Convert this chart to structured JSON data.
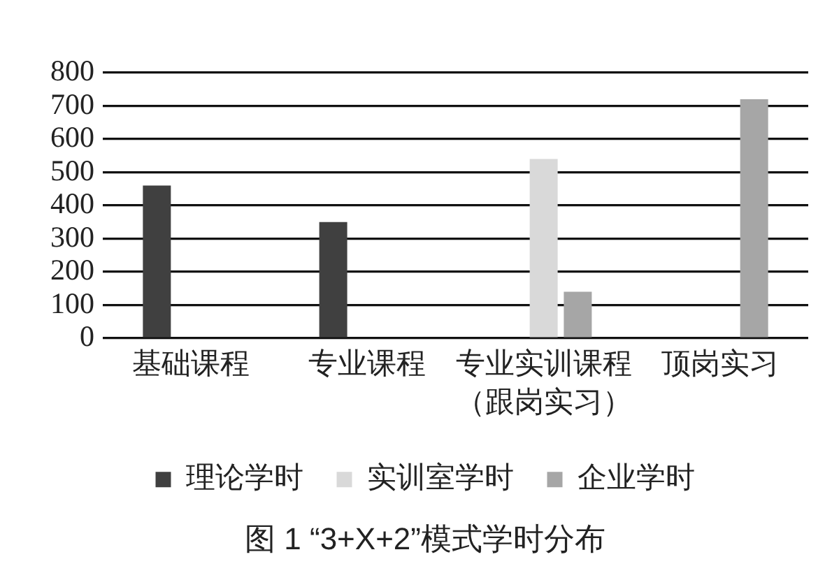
{
  "chart_data": {
    "type": "bar",
    "title": "图 1 “3+X+2”模式学时分布",
    "categories": [
      "基础课程",
      "专业课程",
      "专业实训课程（跟岗实习）",
      "顶岗实习"
    ],
    "series": [
      {
        "name": "理论学时",
        "color": "#404040",
        "values": [
          460,
          350,
          null,
          null
        ]
      },
      {
        "name": "实训室学时",
        "color": "#d9d9d9",
        "values": [
          null,
          null,
          540,
          null
        ]
      },
      {
        "name": "企业学时",
        "color": "#a6a6a6",
        "values": [
          null,
          null,
          140,
          720
        ]
      }
    ],
    "ylim": [
      0,
      800
    ],
    "yticks": [
      0,
      100,
      200,
      300,
      400,
      500,
      600,
      700,
      800
    ],
    "grid": "y",
    "legend": "bottom"
  }
}
